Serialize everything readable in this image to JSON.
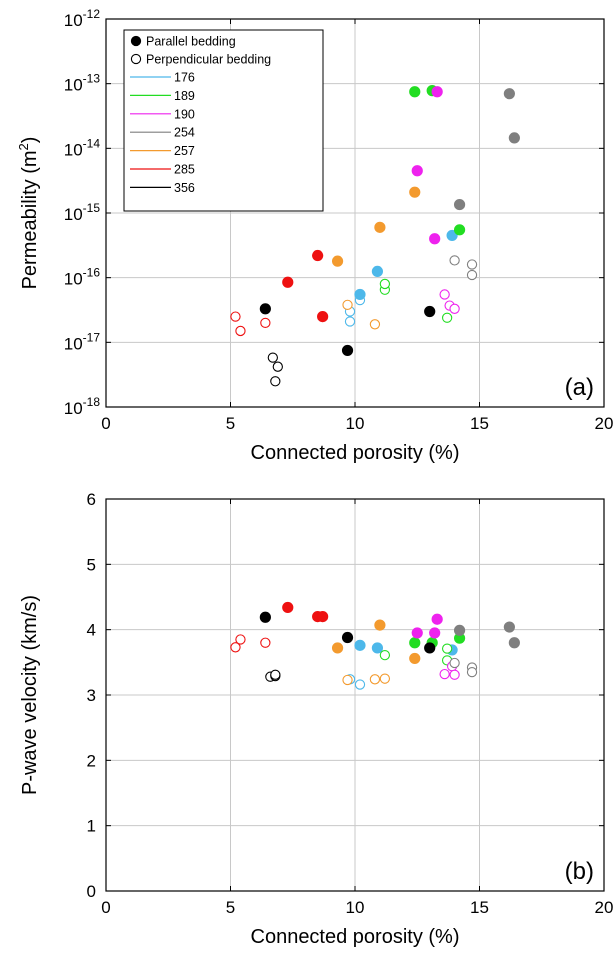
{
  "chart_data": [
    {
      "type": "scatter",
      "panel_label": "(a)",
      "xlabel": "Connected porosity (%)",
      "ylabel": "Permeability (m",
      "ylabel_sup": "2",
      "ylabel_tail": ")",
      "xlim": [
        0,
        20
      ],
      "ylim": [
        1e-18,
        1e-12
      ],
      "yscale": "log",
      "grid": true,
      "x_ticks": [
        "0",
        "5",
        "10",
        "15",
        "20"
      ],
      "y_ticks": [
        {
          "base": "10",
          "exp": "-18"
        },
        {
          "base": "10",
          "exp": "-17"
        },
        {
          "base": "10",
          "exp": "-16"
        },
        {
          "base": "10",
          "exp": "-15"
        },
        {
          "base": "10",
          "exp": "-14"
        },
        {
          "base": "10",
          "exp": "-13"
        },
        {
          "base": "10",
          "exp": "-12"
        }
      ],
      "legend": {
        "placement": "top-left",
        "markers": [
          {
            "label": "Parallel bedding",
            "filled": true
          },
          {
            "label": "Perpendicular bedding",
            "filled": false
          }
        ],
        "lines": [
          {
            "label": "176",
            "color": "#4db8ea"
          },
          {
            "label": "189",
            "color": "#22dd22"
          },
          {
            "label": "190",
            "color": "#ee22ee"
          },
          {
            "label": "254",
            "color": "#7f7f7f"
          },
          {
            "label": "257",
            "color": "#f39a2e"
          },
          {
            "label": "285",
            "color": "#ee1111"
          },
          {
            "label": "356",
            "color": "#000000"
          }
        ]
      },
      "series": [
        {
          "name": "176",
          "color": "#4db8ea",
          "parallel": [
            [
              10.2,
              5.5e-17
            ],
            [
              10.9,
              1.25e-16
            ],
            [
              13.9,
              4.5e-16
            ]
          ],
          "perpendicular": [
            [
              9.8,
              3e-17
            ],
            [
              9.8,
              2.1e-17
            ],
            [
              10.2,
              4.5e-17
            ]
          ]
        },
        {
          "name": "189",
          "color": "#22dd22",
          "parallel": [
            [
              12.4,
              7.5e-14
            ],
            [
              13.1,
              7.8e-14
            ],
            [
              14.2,
              5.5e-16
            ]
          ],
          "perpendicular": [
            [
              11.2,
              6.5e-17
            ],
            [
              11.2,
              8e-17
            ],
            [
              13.7,
              2.4e-17
            ]
          ]
        },
        {
          "name": "190",
          "color": "#ee22ee",
          "parallel": [
            [
              13.3,
              7.5e-14
            ],
            [
              12.5,
              4.5e-15
            ],
            [
              13.2,
              4e-16
            ]
          ],
          "perpendicular": [
            [
              13.6,
              5.5e-17
            ],
            [
              13.8,
              3.7e-17
            ],
            [
              14.0,
              3.3e-17
            ]
          ]
        },
        {
          "name": "254",
          "color": "#7f7f7f",
          "parallel": [
            [
              16.2,
              7e-14
            ],
            [
              16.4,
              1.45e-14
            ],
            [
              14.2,
              1.35e-15
            ]
          ],
          "perpendicular": [
            [
              14.0,
              1.85e-16
            ],
            [
              14.7,
              1.6e-16
            ],
            [
              14.7,
              1.1e-16
            ]
          ]
        },
        {
          "name": "257",
          "color": "#f39a2e",
          "parallel": [
            [
              12.4,
              2.1e-15
            ],
            [
              11.0,
              6e-16
            ],
            [
              9.3,
              1.8e-16
            ]
          ],
          "perpendicular": [
            [
              9.7,
              3.8e-17
            ],
            [
              10.8,
              1.9e-17
            ]
          ]
        },
        {
          "name": "285",
          "color": "#ee1111",
          "parallel": [
            [
              8.5,
              2.2e-16
            ],
            [
              7.3,
              8.5e-17
            ],
            [
              8.7,
              2.5e-17
            ]
          ],
          "perpendicular": [
            [
              5.2,
              2.5e-17
            ],
            [
              5.4,
              1.5e-17
            ],
            [
              6.4,
              2e-17
            ]
          ]
        },
        {
          "name": "356",
          "color": "#000000",
          "parallel": [
            [
              6.4,
              3.3e-17
            ],
            [
              13.0,
              3e-17
            ],
            [
              9.7,
              7.5e-18
            ]
          ],
          "perpendicular": [
            [
              6.7,
              5.8e-18
            ],
            [
              6.9,
              4.2e-18
            ],
            [
              6.8,
              2.5e-18
            ]
          ]
        }
      ]
    },
    {
      "type": "scatter",
      "panel_label": "(b)",
      "xlabel": "Connected porosity (%)",
      "ylabel": "P-wave velocity (km/s)",
      "xlim": [
        0,
        20
      ],
      "ylim": [
        0,
        6
      ],
      "yscale": "linear",
      "grid": true,
      "x_ticks": [
        "0",
        "5",
        "10",
        "15",
        "20"
      ],
      "y_ticks": [
        "0",
        "1",
        "2",
        "3",
        "4",
        "5",
        "6"
      ],
      "series": [
        {
          "name": "176",
          "color": "#4db8ea",
          "parallel": [
            [
              10.2,
              3.76
            ],
            [
              10.9,
              3.72
            ],
            [
              13.9,
              3.69
            ]
          ],
          "perpendicular": [
            [
              9.8,
              3.24
            ],
            [
              10.2,
              3.16
            ]
          ]
        },
        {
          "name": "189",
          "color": "#22dd22",
          "parallel": [
            [
              12.4,
              3.8
            ],
            [
              13.1,
              3.8
            ],
            [
              14.2,
              3.87
            ]
          ],
          "perpendicular": [
            [
              11.2,
              3.61
            ],
            [
              13.7,
              3.71
            ],
            [
              13.7,
              3.53
            ]
          ]
        },
        {
          "name": "190",
          "color": "#ee22ee",
          "parallel": [
            [
              13.3,
              4.16
            ],
            [
              12.5,
              3.95
            ],
            [
              13.2,
              3.95
            ]
          ],
          "perpendicular": [
            [
              13.6,
              3.32
            ],
            [
              13.9,
              3.44
            ],
            [
              14.0,
              3.31
            ]
          ]
        },
        {
          "name": "254",
          "color": "#7f7f7f",
          "parallel": [
            [
              14.2,
              3.99
            ],
            [
              16.2,
              4.04
            ],
            [
              16.4,
              3.8
            ]
          ],
          "perpendicular": [
            [
              14.0,
              3.49
            ],
            [
              14.7,
              3.42
            ],
            [
              14.7,
              3.35
            ]
          ]
        },
        {
          "name": "257",
          "color": "#f39a2e",
          "parallel": [
            [
              11.0,
              4.07
            ],
            [
              9.3,
              3.72
            ],
            [
              12.4,
              3.56
            ]
          ],
          "perpendicular": [
            [
              9.7,
              3.23
            ],
            [
              10.8,
              3.24
            ],
            [
              11.2,
              3.25
            ]
          ]
        },
        {
          "name": "285",
          "color": "#ee1111",
          "parallel": [
            [
              7.3,
              4.34
            ],
            [
              8.5,
              4.2
            ],
            [
              8.7,
              4.2
            ]
          ],
          "perpendicular": [
            [
              5.4,
              3.85
            ],
            [
              5.2,
              3.73
            ],
            [
              6.4,
              3.8
            ]
          ]
        },
        {
          "name": "356",
          "color": "#000000",
          "parallel": [
            [
              6.4,
              4.19
            ],
            [
              9.7,
              3.88
            ],
            [
              13.0,
              3.72
            ]
          ],
          "perpendicular": [
            [
              6.6,
              3.28
            ],
            [
              6.8,
              3.29
            ],
            [
              6.8,
              3.31
            ]
          ]
        }
      ]
    }
  ]
}
